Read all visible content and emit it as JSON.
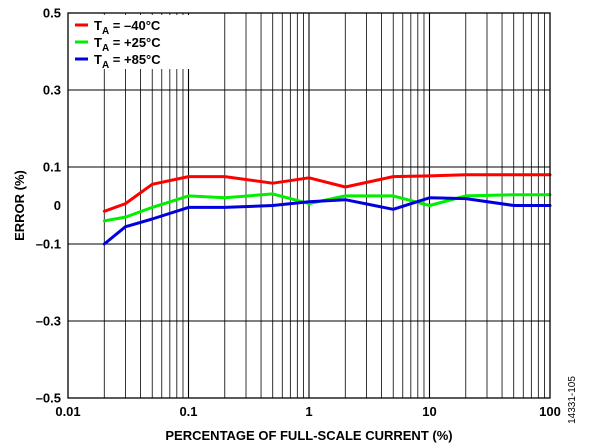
{
  "chart_data": {
    "type": "line",
    "xlabel": "PERCENTAGE OF FULL-SCALE CURRENT (%)",
    "ylabel": "ERROR (%)",
    "x_scale": "log",
    "xlim": [
      0.01,
      100
    ],
    "ylim": [
      -0.5,
      0.5
    ],
    "grid": true,
    "legend_position": "top-left",
    "x_ticks": [
      {
        "value": 0.01,
        "label": "0.01"
      },
      {
        "value": 0.1,
        "label": "0.1"
      },
      {
        "value": 1,
        "label": "1"
      },
      {
        "value": 10,
        "label": "10"
      },
      {
        "value": 100,
        "label": "100"
      }
    ],
    "y_ticks": [
      {
        "value": 0.5,
        "label": "0.5"
      },
      {
        "value": 0.3,
        "label": "0.3"
      },
      {
        "value": 0.1,
        "label": "0.1"
      },
      {
        "value": 0,
        "label": "0"
      },
      {
        "value": -0.1,
        "label": "–0.1"
      },
      {
        "value": -0.3,
        "label": "–0.3"
      },
      {
        "value": -0.5,
        "label": "–0.5"
      }
    ],
    "y_gridlines": [
      0.5,
      0.3,
      0.1,
      -0.1,
      -0.3,
      -0.5
    ],
    "series": [
      {
        "name": "TA = –40°C",
        "label_main": "T",
        "label_sub": "A",
        "label_rest": " = –40°C",
        "color": "#ff0000",
        "x": [
          0.02,
          0.03,
          0.05,
          0.1,
          0.2,
          0.5,
          1,
          2,
          5,
          10,
          20,
          50,
          100
        ],
        "y": [
          -0.015,
          0.005,
          0.055,
          0.075,
          0.075,
          0.058,
          0.072,
          0.048,
          0.075,
          0.077,
          0.08,
          0.08,
          0.08
        ]
      },
      {
        "name": "TA = +25°C",
        "label_main": "T",
        "label_sub": "A",
        "label_rest": " = +25°C",
        "color": "#00ee00",
        "x": [
          0.02,
          0.03,
          0.05,
          0.1,
          0.2,
          0.5,
          1,
          2,
          5,
          10,
          20,
          50,
          100
        ],
        "y": [
          -0.04,
          -0.03,
          -0.005,
          0.025,
          0.02,
          0.03,
          0.005,
          0.025,
          0.025,
          0.0,
          0.025,
          0.028,
          0.028
        ]
      },
      {
        "name": "TA = +85°C",
        "label_main": "T",
        "label_sub": "A",
        "label_rest": " = +85°C",
        "color": "#0000dd",
        "x": [
          0.02,
          0.03,
          0.05,
          0.1,
          0.2,
          0.5,
          1,
          2,
          5,
          10,
          20,
          50,
          100
        ],
        "y": [
          -0.1,
          -0.055,
          -0.035,
          -0.005,
          -0.005,
          0.0,
          0.01,
          0.015,
          -0.01,
          0.02,
          0.018,
          0.0,
          0.0
        ]
      }
    ]
  },
  "figure_id": "14331-105"
}
